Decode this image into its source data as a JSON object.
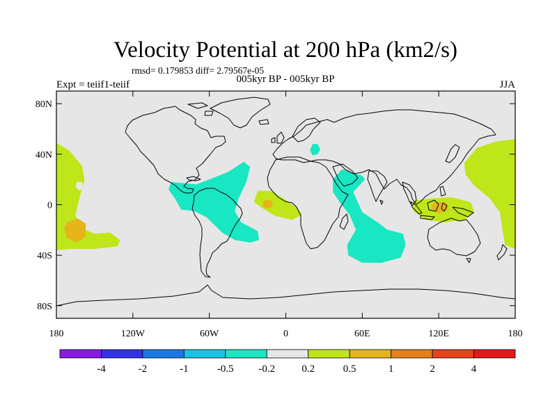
{
  "title": "Velocity Potential at 200 hPa (km2/s)",
  "stats": "rmsd= 0.179853 diff= 2.79567e-05",
  "experiment_left": "Expt = teiif1-teiif",
  "experiment_center": "005kyr BP - 005kyr BP",
  "season": "JJA",
  "map": {
    "projection": "cylindrical-equidistant",
    "lon_range": [
      -180,
      180
    ],
    "lat_range": [
      -90,
      90
    ],
    "background_color": "#e6e6e6",
    "coastline_color": "#000000",
    "lon_ticks": [
      {
        "value": -180,
        "label": "180"
      },
      {
        "value": -120,
        "label": "120W"
      },
      {
        "value": -60,
        "label": "60W"
      },
      {
        "value": 0,
        "label": "0"
      },
      {
        "value": 60,
        "label": "60E"
      },
      {
        "value": 120,
        "label": "120E"
      },
      {
        "value": 180,
        "label": "180"
      }
    ],
    "lat_ticks": [
      {
        "value": 80,
        "label": "80N"
      },
      {
        "value": 40,
        "label": "40N"
      },
      {
        "value": 0,
        "label": "0"
      },
      {
        "value": -40,
        "label": "40S"
      },
      {
        "value": -80,
        "label": "80S"
      }
    ]
  },
  "colorbar": {
    "colors": [
      "#8a1ae6",
      "#3232e6",
      "#1a78e6",
      "#19c3e6",
      "#19e6c3",
      "#e6e6e6",
      "#bee619",
      "#e6b419",
      "#e68019",
      "#e64419",
      "#e61919"
    ],
    "labels": [
      "-4",
      "-2",
      "-1",
      "-0.5",
      "-0.2",
      "0.2",
      "0.5",
      "1",
      "2",
      "4"
    ]
  },
  "regions": [
    {
      "name": "central-pacific-positive",
      "level": "0.2 to 0.5",
      "color": "#bee619",
      "polygon": [
        [
          -180,
          49
        ],
        [
          -170,
          43
        ],
        [
          -160,
          31
        ],
        [
          -158,
          20
        ],
        [
          -162,
          5
        ],
        [
          -165,
          -8
        ],
        [
          -162,
          -18
        ],
        [
          -150,
          -23
        ],
        [
          -138,
          -22
        ],
        [
          -130,
          -28
        ],
        [
          -132,
          -33
        ],
        [
          -150,
          -35
        ],
        [
          -168,
          -35
        ],
        [
          -180,
          -36
        ]
      ]
    },
    {
      "name": "central-pacific-core",
      "level": "0.5 to 1",
      "color": "#e6b419",
      "polygon": [
        [
          -172,
          -14
        ],
        [
          -163,
          -11
        ],
        [
          -157,
          -15
        ],
        [
          -157,
          -25
        ],
        [
          -164,
          -30
        ],
        [
          -172,
          -26
        ],
        [
          -174,
          -19
        ]
      ]
    },
    {
      "name": "pacific-gap",
      "level": "-0.2 to 0.2",
      "color": "#e6e6e6",
      "polygon": [
        [
          -164,
          18
        ],
        [
          -160,
          18
        ],
        [
          -159,
          13
        ],
        [
          -162,
          11
        ],
        [
          -165,
          14
        ]
      ]
    },
    {
      "name": "americas-atlantic-negative",
      "level": "-0.5 to -0.2",
      "color": "#19e6c3",
      "polygon": [
        [
          -90,
          18
        ],
        [
          -70,
          16
        ],
        [
          -45,
          26
        ],
        [
          -33,
          34
        ],
        [
          -28,
          30
        ],
        [
          -31,
          18
        ],
        [
          -37,
          5
        ],
        [
          -40,
          -5
        ],
        [
          -35,
          -14
        ],
        [
          -22,
          -21
        ],
        [
          -21,
          -28
        ],
        [
          -28,
          -30
        ],
        [
          -40,
          -28
        ],
        [
          -50,
          -22
        ],
        [
          -62,
          -10
        ],
        [
          -72,
          -5
        ],
        [
          -82,
          -4
        ],
        [
          -87,
          5
        ],
        [
          -92,
          12
        ]
      ]
    },
    {
      "name": "west-africa-positive",
      "level": "0.2 to 0.5",
      "color": "#bee619",
      "polygon": [
        [
          -22,
          11
        ],
        [
          -12,
          11
        ],
        [
          -2,
          5
        ],
        [
          8,
          -2
        ],
        [
          13,
          -8
        ],
        [
          5,
          -12
        ],
        [
          -8,
          -9
        ],
        [
          -18,
          -3
        ],
        [
          -25,
          2
        ]
      ]
    },
    {
      "name": "west-africa-core",
      "level": "0.5 to 1",
      "color": "#e6b419",
      "polygon": [
        [
          -18,
          3
        ],
        [
          -12,
          4
        ],
        [
          -10,
          0
        ],
        [
          -13,
          -3
        ],
        [
          -18,
          -2
        ]
      ]
    },
    {
      "name": "indian-ocean-negative",
      "level": "-0.5 to -0.2",
      "color": "#19e6c3",
      "polygon": [
        [
          37,
          20
        ],
        [
          44,
          28
        ],
        [
          60,
          23
        ],
        [
          62,
          20
        ],
        [
          53,
          10
        ],
        [
          60,
          -6
        ],
        [
          72,
          -14
        ],
        [
          80,
          -20
        ],
        [
          92,
          -23
        ],
        [
          94,
          -32
        ],
        [
          90,
          -42
        ],
        [
          75,
          -46
        ],
        [
          60,
          -46
        ],
        [
          49,
          -40
        ],
        [
          48,
          -32
        ],
        [
          55,
          -20
        ],
        [
          50,
          -8
        ],
        [
          43,
          1
        ],
        [
          37,
          10
        ]
      ]
    },
    {
      "name": "europe-negative",
      "level": "-0.5 to -0.2",
      "color": "#19e6c3",
      "polygon": [
        [
          21,
          48
        ],
        [
          25,
          48
        ],
        [
          27,
          44
        ],
        [
          25,
          40
        ],
        [
          21,
          39
        ],
        [
          19,
          43
        ]
      ]
    },
    {
      "name": "maritime-continent-positive",
      "level": "0.2 to 0.5",
      "color": "#bee619",
      "polygon": [
        [
          100,
          3
        ],
        [
          115,
          5
        ],
        [
          130,
          6
        ],
        [
          145,
          2
        ],
        [
          148,
          -6
        ],
        [
          140,
          -12
        ],
        [
          125,
          -14
        ],
        [
          110,
          -12
        ],
        [
          100,
          -5
        ]
      ]
    },
    {
      "name": "maritime-continent-core",
      "level": "0.5 to 1",
      "color": "#e6b419",
      "polygon": [
        [
          116,
          2
        ],
        [
          126,
          2
        ],
        [
          128,
          -4
        ],
        [
          120,
          -7
        ],
        [
          114,
          -3
        ]
      ]
    },
    {
      "name": "western-pacific-positive",
      "level": "0.2 to 0.5",
      "color": "#bee619",
      "polygon": [
        [
          140,
          33
        ],
        [
          150,
          45
        ],
        [
          165,
          50
        ],
        [
          180,
          52
        ],
        [
          180,
          -35
        ],
        [
          172,
          -32
        ],
        [
          170,
          -20
        ],
        [
          168,
          -6
        ],
        [
          160,
          5
        ],
        [
          148,
          15
        ],
        [
          141,
          24
        ]
      ]
    }
  ]
}
